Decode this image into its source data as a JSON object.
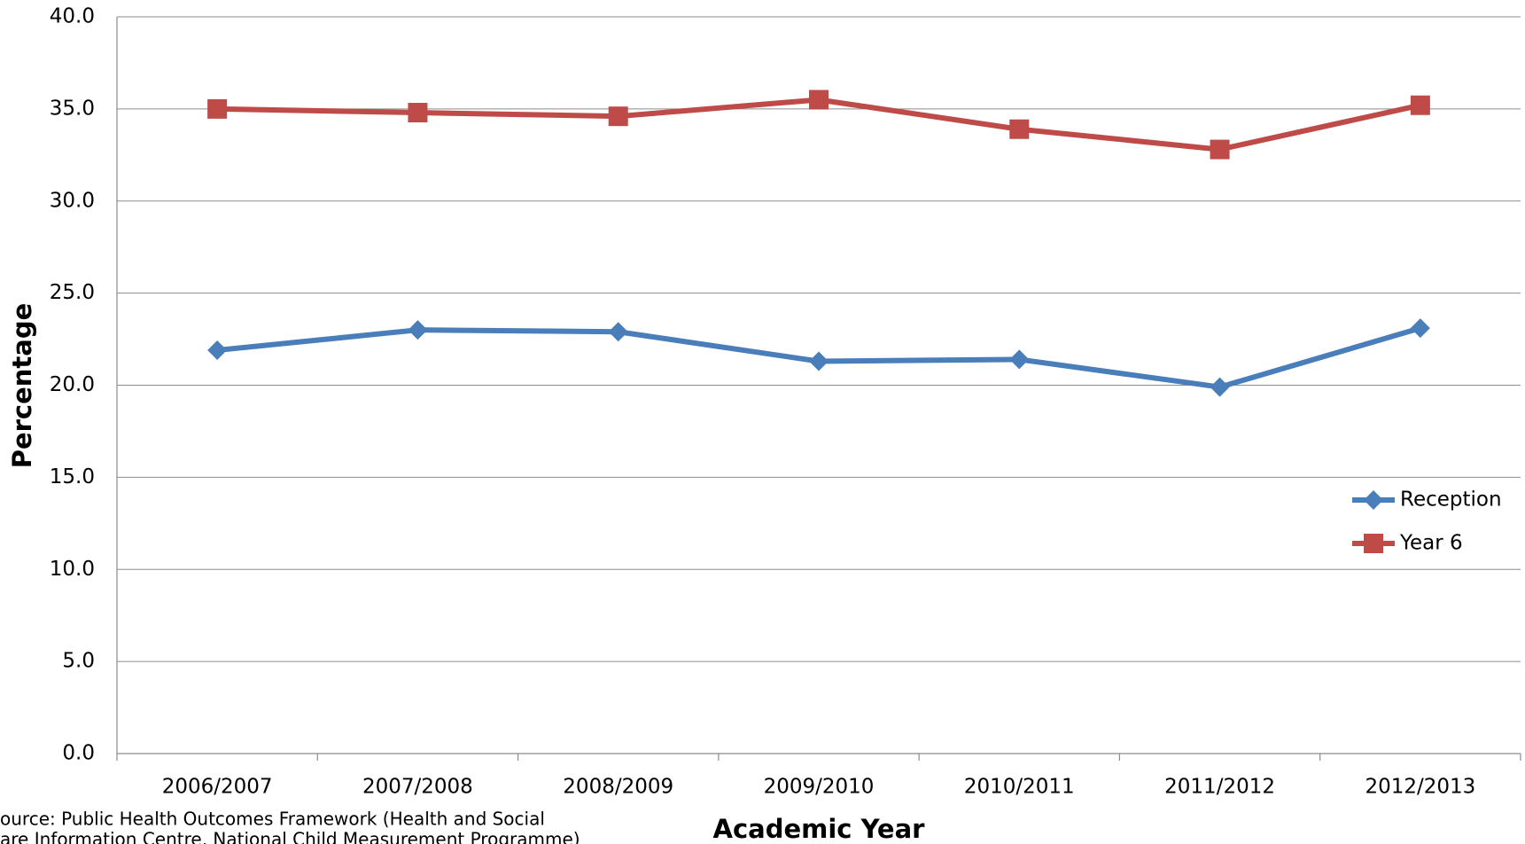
{
  "chart_data": {
    "type": "line",
    "categories": [
      "2006/2007",
      "2007/2008",
      "2008/2009",
      "2009/2010",
      "2010/2011",
      "2011/2012",
      "2012/2013"
    ],
    "series": [
      {
        "name": "Reception",
        "color": "#4a7ebb",
        "marker": "diamond",
        "values": [
          21.9,
          23.0,
          22.9,
          21.3,
          21.4,
          19.9,
          23.1
        ]
      },
      {
        "name": "Year 6",
        "color": "#be4b48",
        "marker": "square",
        "values": [
          35.0,
          34.8,
          34.6,
          35.5,
          33.9,
          32.8,
          35.2
        ]
      }
    ],
    "ylim": [
      0,
      40
    ],
    "yticks": [
      {
        "value": 0,
        "label": "0.0"
      },
      {
        "value": 5,
        "label": "5.0"
      },
      {
        "value": 10,
        "label": "10.0"
      },
      {
        "value": 15,
        "label": "15.0"
      },
      {
        "value": 20,
        "label": "20.0"
      },
      {
        "value": 25,
        "label": "25.0"
      },
      {
        "value": 30,
        "label": "30.0"
      },
      {
        "value": 35,
        "label": "35.0"
      },
      {
        "value": 40,
        "label": "40.0"
      }
    ],
    "grid": true,
    "xlabel": "Academic Year",
    "ylabel": "Percentage",
    "legend": "right",
    "source": [
      "ource: Public Health Outcomes Framework (Health and Social",
      "are Information Centre, National Child Measurement Programme)"
    ]
  }
}
